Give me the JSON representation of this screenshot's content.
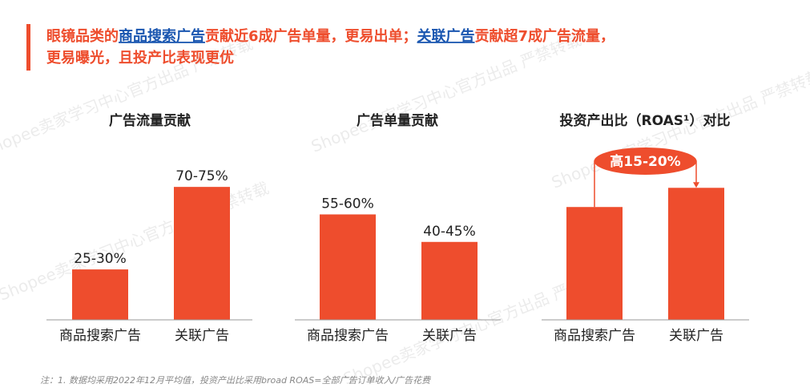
{
  "header": {
    "lines": [
      [
        {
          "text": "眼镜品类的",
          "link": false
        },
        {
          "text": "商品搜索广告",
          "link": true
        },
        {
          "text": "贡献近6成广告单量，更易出单；",
          "link": false
        },
        {
          "text": "关联广告",
          "link": true
        },
        {
          "text": "贡献超7成广告流量，",
          "link": false
        }
      ],
      [
        {
          "text": "更易曝光，且投产比表现更优",
          "link": false
        }
      ]
    ]
  },
  "chart_data": [
    {
      "type": "bar",
      "title": "广告流量贡献",
      "categories": [
        "商品搜索广告",
        "关联广告"
      ],
      "values": [
        27.5,
        72.5
      ],
      "value_labels": [
        "25-30%",
        "70-75%"
      ],
      "color": "#ee4d2d",
      "ylim": [
        0,
        80
      ]
    },
    {
      "type": "bar",
      "title": "广告单量贡献",
      "categories": [
        "商品搜索广告",
        "关联广告"
      ],
      "values": [
        57.5,
        42.5
      ],
      "value_labels": [
        "55-60%",
        "40-45%"
      ],
      "color": "#ee4d2d",
      "ylim": [
        0,
        80
      ]
    },
    {
      "type": "bar",
      "title": "投资产出比（ROAS¹）对比",
      "categories": [
        "商品搜索广告",
        "关联广告"
      ],
      "values": [
        1,
        1.17
      ],
      "color": "#ee4d2d",
      "ylim": [
        0,
        1.3
      ],
      "annotation": "高15-20%"
    }
  ],
  "footnote": "注：1. 数据均采用2022年12月平均值，投资产出比采用broad ROAS=全部广告订单收入/广告花费",
  "watermark": "Shopee卖家学习中心官方出品 严禁转载"
}
